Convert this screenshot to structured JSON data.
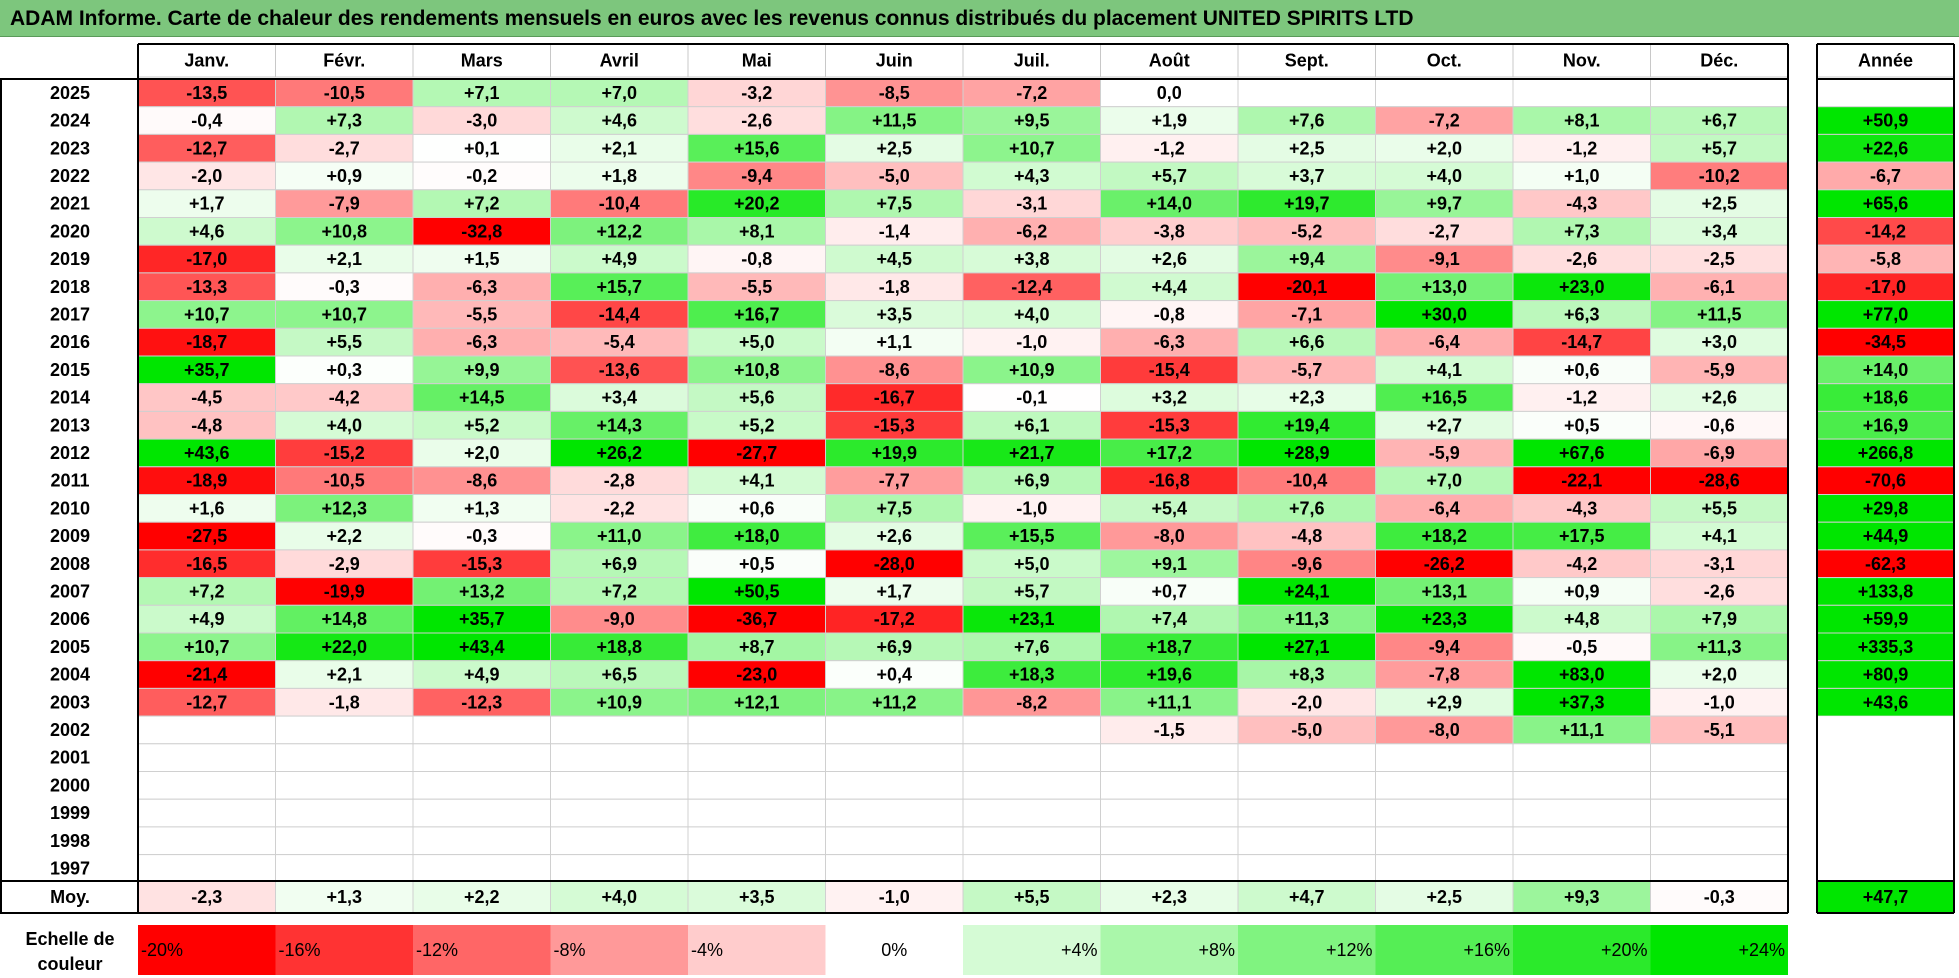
{
  "chart_data": {
    "type": "heatmap",
    "title": "ADAM Informe. Carte de chaleur des rendements mensuels en euros avec les revenus connus distribués du placement UNITED SPIRITS LTD",
    "months": [
      "Janv.",
      "Févr.",
      "Mars",
      "Avril",
      "Mai",
      "Juin",
      "Juil.",
      "Août",
      "Sept.",
      "Oct.",
      "Nov.",
      "Déc."
    ],
    "year_label": "Année",
    "rows": [
      {
        "year": "2025",
        "values": [
          -13.5,
          -10.5,
          7.1,
          7.0,
          -3.2,
          -8.5,
          -7.2,
          0.0,
          null,
          null,
          null,
          null
        ],
        "annual": null
      },
      {
        "year": "2024",
        "values": [
          -0.4,
          7.3,
          -3.0,
          4.6,
          -2.6,
          11.5,
          9.5,
          1.9,
          7.6,
          -7.2,
          8.1,
          6.7
        ],
        "annual": 50.9
      },
      {
        "year": "2023",
        "values": [
          -12.7,
          -2.7,
          0.1,
          2.1,
          15.6,
          2.5,
          10.7,
          -1.2,
          2.5,
          2.0,
          -1.2,
          5.7
        ],
        "annual": 22.6
      },
      {
        "year": "2022",
        "values": [
          -2.0,
          0.9,
          -0.2,
          1.8,
          -9.4,
          -5.0,
          4.3,
          5.7,
          3.7,
          4.0,
          1.0,
          -10.2
        ],
        "annual": -6.7
      },
      {
        "year": "2021",
        "values": [
          1.7,
          -7.9,
          7.2,
          -10.4,
          20.2,
          7.5,
          -3.1,
          14.0,
          19.7,
          9.7,
          -4.3,
          2.5
        ],
        "annual": 65.6
      },
      {
        "year": "2020",
        "values": [
          4.6,
          10.8,
          -32.8,
          12.2,
          8.1,
          -1.4,
          -6.2,
          -3.8,
          -5.2,
          -2.7,
          7.3,
          3.4
        ],
        "annual": -14.2
      },
      {
        "year": "2019",
        "values": [
          -17.0,
          2.1,
          1.5,
          4.9,
          -0.8,
          4.5,
          3.8,
          2.6,
          9.4,
          -9.1,
          -2.6,
          -2.5
        ],
        "annual": -5.8
      },
      {
        "year": "2018",
        "values": [
          -13.3,
          -0.3,
          -6.3,
          15.7,
          -5.5,
          -1.8,
          -12.4,
          4.4,
          -20.1,
          13.0,
          23.0,
          -6.1
        ],
        "annual": -17.0
      },
      {
        "year": "2017",
        "values": [
          10.7,
          10.7,
          -5.5,
          -14.4,
          16.7,
          3.5,
          4.0,
          -0.8,
          -7.1,
          30.0,
          6.3,
          11.5
        ],
        "annual": 77.0
      },
      {
        "year": "2016",
        "values": [
          -18.7,
          5.5,
          -6.3,
          -5.4,
          5.0,
          1.1,
          -1.0,
          -6.3,
          6.6,
          -6.4,
          -14.7,
          3.0
        ],
        "annual": -34.5
      },
      {
        "year": "2015",
        "values": [
          35.7,
          0.3,
          9.9,
          -13.6,
          10.8,
          -8.6,
          10.9,
          -15.4,
          -5.7,
          4.1,
          0.6,
          -5.9
        ],
        "annual": 14.0
      },
      {
        "year": "2014",
        "values": [
          -4.5,
          -4.2,
          14.5,
          3.4,
          5.6,
          -16.7,
          -0.1,
          3.2,
          2.3,
          16.5,
          -1.2,
          2.6
        ],
        "annual": 18.6
      },
      {
        "year": "2013",
        "values": [
          -4.8,
          4.0,
          5.2,
          14.3,
          5.2,
          -15.3,
          6.1,
          -15.3,
          19.4,
          2.7,
          0.5,
          -0.6
        ],
        "annual": 16.9
      },
      {
        "year": "2012",
        "values": [
          43.6,
          -15.2,
          2.0,
          26.2,
          -27.7,
          19.9,
          21.7,
          17.2,
          28.9,
          -5.9,
          67.6,
          -6.9
        ],
        "annual": 266.8
      },
      {
        "year": "2011",
        "values": [
          -18.9,
          -10.5,
          -8.6,
          -2.8,
          4.1,
          -7.7,
          6.9,
          -16.8,
          -10.4,
          7.0,
          -22.1,
          -28.6
        ],
        "annual": -70.6
      },
      {
        "year": "2010",
        "values": [
          1.6,
          12.3,
          1.3,
          -2.2,
          0.6,
          7.5,
          -1.0,
          5.4,
          7.6,
          -6.4,
          -4.3,
          5.5
        ],
        "annual": 29.8
      },
      {
        "year": "2009",
        "values": [
          -27.5,
          2.2,
          -0.3,
          11.0,
          18.0,
          2.6,
          15.5,
          -8.0,
          -4.8,
          18.2,
          17.5,
          4.1
        ],
        "annual": 44.9
      },
      {
        "year": "2008",
        "values": [
          -16.5,
          -2.9,
          -15.3,
          6.9,
          0.5,
          -28.0,
          5.0,
          9.1,
          -9.6,
          -26.2,
          -4.2,
          -3.1
        ],
        "annual": -62.3
      },
      {
        "year": "2007",
        "values": [
          7.2,
          -19.9,
          13.2,
          7.2,
          50.5,
          1.7,
          5.7,
          0.7,
          24.1,
          13.1,
          0.9,
          -2.6
        ],
        "annual": 133.8
      },
      {
        "year": "2006",
        "values": [
          4.9,
          14.8,
          35.7,
          -9.0,
          -36.7,
          -17.2,
          23.1,
          7.4,
          11.3,
          23.3,
          4.8,
          7.9
        ],
        "annual": 59.9
      },
      {
        "year": "2005",
        "values": [
          10.7,
          22.0,
          43.4,
          18.8,
          8.7,
          6.9,
          7.6,
          18.7,
          27.1,
          -9.4,
          -0.5,
          11.3
        ],
        "annual": 335.3
      },
      {
        "year": "2004",
        "values": [
          -21.4,
          2.1,
          4.9,
          6.5,
          -23.0,
          0.4,
          18.3,
          19.6,
          8.3,
          -7.8,
          83.0,
          2.0
        ],
        "annual": 80.9
      },
      {
        "year": "2003",
        "values": [
          -12.7,
          -1.8,
          -12.3,
          10.9,
          12.1,
          11.2,
          -8.2,
          11.1,
          -2.0,
          2.9,
          37.3,
          -1.0
        ],
        "annual": 43.6
      },
      {
        "year": "2002",
        "values": [
          null,
          null,
          null,
          null,
          null,
          null,
          null,
          -1.5,
          -5.0,
          -8.0,
          11.1,
          -5.1
        ],
        "annual": null
      },
      {
        "year": "2001",
        "values": [
          null,
          null,
          null,
          null,
          null,
          null,
          null,
          null,
          null,
          null,
          null,
          null
        ],
        "annual": null
      },
      {
        "year": "2000",
        "values": [
          null,
          null,
          null,
          null,
          null,
          null,
          null,
          null,
          null,
          null,
          null,
          null
        ],
        "annual": null
      },
      {
        "year": "1999",
        "values": [
          null,
          null,
          null,
          null,
          null,
          null,
          null,
          null,
          null,
          null,
          null,
          null
        ],
        "annual": null
      },
      {
        "year": "1998",
        "values": [
          null,
          null,
          null,
          null,
          null,
          null,
          null,
          null,
          null,
          null,
          null,
          null
        ],
        "annual": null
      },
      {
        "year": "1997",
        "values": [
          null,
          null,
          null,
          null,
          null,
          null,
          null,
          null,
          null,
          null,
          null,
          null
        ],
        "annual": null
      }
    ],
    "average": {
      "label": "Moy.",
      "values": [
        -2.3,
        1.3,
        2.2,
        4.0,
        3.5,
        -1.0,
        5.5,
        2.3,
        4.7,
        2.5,
        9.3,
        -0.3
      ],
      "annual": 47.7
    },
    "color_scale": {
      "label": "Echelle de couleur",
      "steps": [
        "-20%",
        "-16%",
        "-12%",
        "-8%",
        "-4%",
        "0%",
        "+4%",
        "+8%",
        "+12%",
        "+16%",
        "+20%",
        "+24%"
      ],
      "step_values": [
        -20,
        -16,
        -12,
        -8,
        -4,
        0,
        4,
        8,
        12,
        16,
        20,
        24
      ],
      "negative_color": "#ff0000",
      "positive_color": "#00e600",
      "neutral_color": "#ffffff"
    }
  }
}
